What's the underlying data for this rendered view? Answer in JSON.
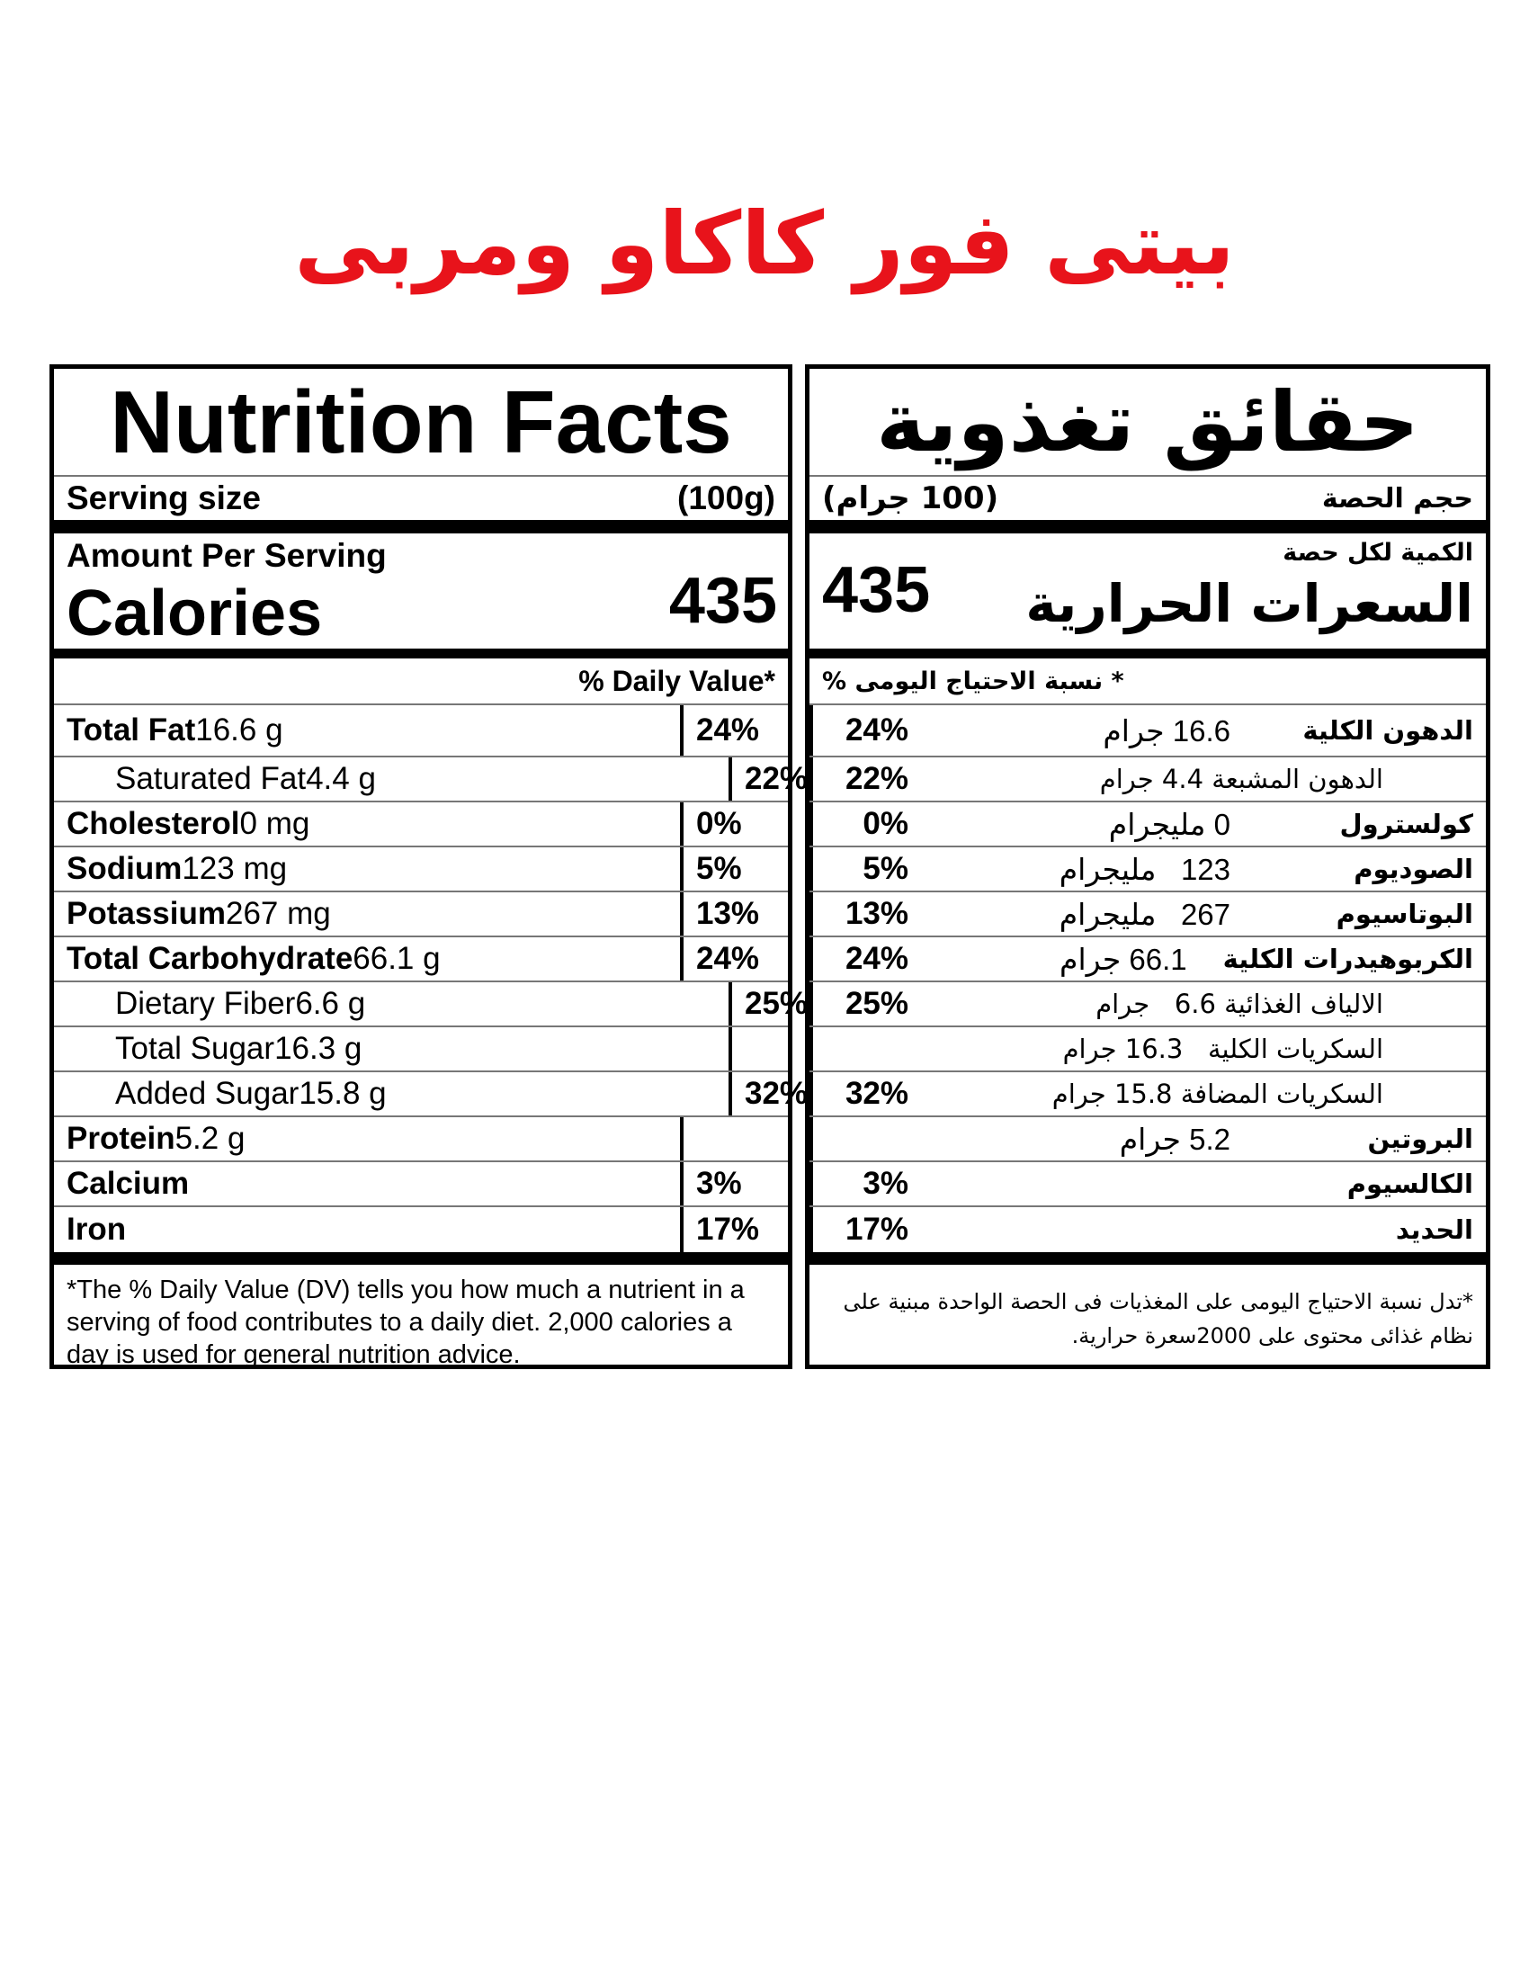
{
  "title": "بيتى فور كاكاو ومربى",
  "english": {
    "header": "Nutrition Facts",
    "serving_label": "Serving size",
    "serving_value": "(100g)",
    "amount_per_serving": "Amount Per Serving",
    "calories_label": "Calories",
    "calories_value": "435",
    "daily_value_header": "% Daily Value*",
    "rows": [
      {
        "name": "Total Fat",
        "amount": "16.6 g",
        "dv": "24%"
      },
      {
        "name": "Saturated Fat",
        "amount": "4.4 g",
        "dv": "22%"
      },
      {
        "name": "Cholesterol",
        "amount": "0 mg",
        "dv": "0%"
      },
      {
        "name": "Sodium",
        "amount": "123 mg",
        "dv": "5%"
      },
      {
        "name": "Potassium",
        "amount": "267 mg",
        "dv": "13%"
      },
      {
        "name": "Total Carbohydrate",
        "amount": "66.1 g",
        "dv": "24%"
      },
      {
        "name": "Dietary Fiber",
        "amount": "6.6 g",
        "dv": "25%"
      },
      {
        "name": "Total Sugar",
        "amount": "16.3 g",
        "dv": ""
      },
      {
        "name": "Added Sugar",
        "amount": "15.8 g",
        "dv": "32%"
      },
      {
        "name": "Protein",
        "amount": "5.2 g",
        "dv": ""
      },
      {
        "name": "Calcium",
        "amount": "",
        "dv": "3%"
      },
      {
        "name": "Iron",
        "amount": "",
        "dv": "17%"
      }
    ],
    "footnote": "*The % Daily Value (DV) tells you how much a nutrient in a serving of food contributes to a daily diet. 2,000 calories a day is used for general nutrition advice."
  },
  "arabic": {
    "header": "حقائق تغذوية",
    "serving_label": "حجم الحصة",
    "serving_value": "(100 جرام)",
    "amount_per_serving": "الكمية لكل حصة",
    "calories_label": "السعرات الحرارية",
    "calories_value": "435",
    "daily_value_header": "* نسبة الاحتياج اليومى %",
    "rows": [
      {
        "name": "الدهون الكلية",
        "amount": "16.6 جرام",
        "dv": "24%"
      },
      {
        "name": "الدهون المشبعة 4.4 جرام",
        "amount": "",
        "dv": "22%"
      },
      {
        "name": "كولسترول",
        "amount": "0 مليجرام",
        "dv": "0%"
      },
      {
        "name": "الصوديوم",
        "amount": "123   مليجرام",
        "dv": "5%"
      },
      {
        "name": "البوتاسيوم",
        "amount": "267   مليجرام",
        "dv": "13%"
      },
      {
        "name": "الكربوهيدرات الكلية",
        "amount": "66.1 جرام",
        "dv": "24%"
      },
      {
        "name": "الالياف الغذائية 6.6   جرام",
        "amount": "",
        "dv": "25%"
      },
      {
        "name": "السكريات الكلية   16.3 جرام",
        "amount": "",
        "dv": ""
      },
      {
        "name": "السكريات المضافة 15.8 جرام",
        "amount": "",
        "dv": "32%"
      },
      {
        "name": "البروتين",
        "amount": "5.2 جرام",
        "dv": ""
      },
      {
        "name": "الكالسيوم",
        "amount": "",
        "dv": "3%"
      },
      {
        "name": "الحديد",
        "amount": "",
        "dv": "17%"
      }
    ],
    "footnote": "*تدل نسبة الاحتياج اليومى على المغذيات فى الحصة الواحدة مبنية على نظام غذائى محتوى على 2000سعرة حرارية."
  }
}
